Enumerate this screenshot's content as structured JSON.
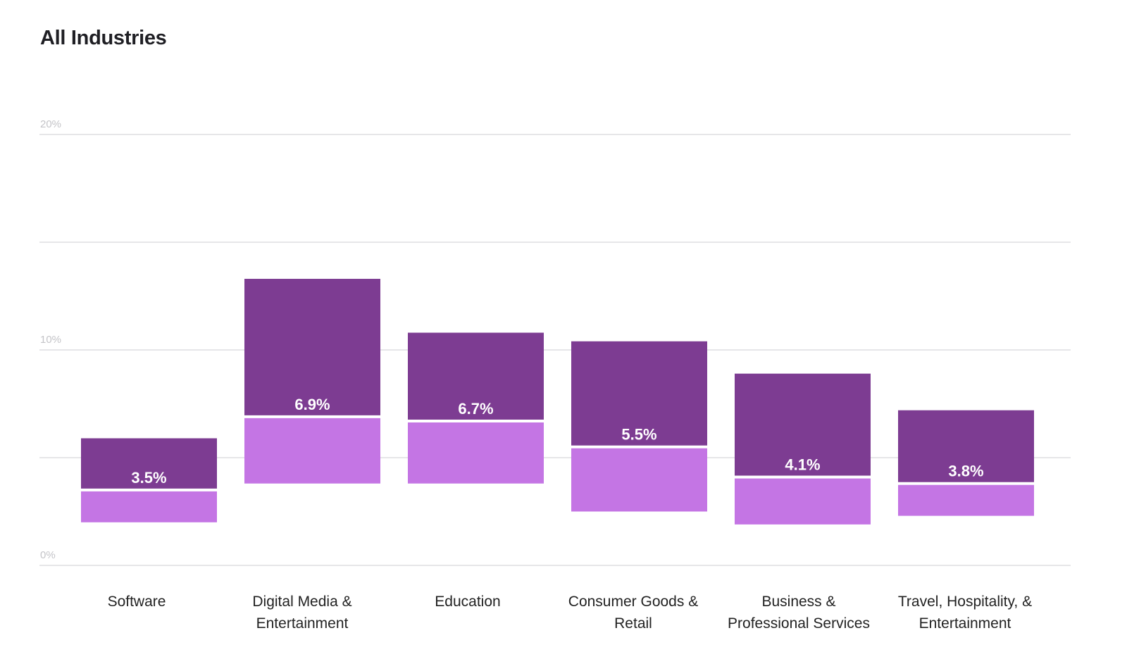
{
  "chart_data": {
    "type": "bar",
    "subtype": "floating-range",
    "title": "All Industries",
    "ylim": [
      0,
      20
    ],
    "y_ticks": [
      "0%",
      "10%",
      "20%"
    ],
    "gridlines": [
      0,
      5,
      10,
      15,
      20
    ],
    "grid": true,
    "colors": {
      "upper": "#7d3c92",
      "lower": "#c475e4",
      "grid": "#e6e6e8"
    },
    "categories": [
      [
        "Software"
      ],
      [
        "Digital Media &",
        "Entertainment"
      ],
      [
        "Education"
      ],
      [
        "Consumer Goods &",
        "Retail"
      ],
      [
        "Business &",
        "Professional Services"
      ],
      [
        "Travel, Hospitality, &",
        "Entertainment"
      ]
    ],
    "series": [
      {
        "low": 2.0,
        "median": 3.5,
        "high": 5.9,
        "label": "3.5%"
      },
      {
        "low": 3.8,
        "median": 6.9,
        "high": 13.3,
        "label": "6.9%"
      },
      {
        "low": 3.8,
        "median": 6.7,
        "high": 10.8,
        "label": "6.7%"
      },
      {
        "low": 2.5,
        "median": 5.5,
        "high": 10.4,
        "label": "5.5%"
      },
      {
        "low": 1.9,
        "median": 4.1,
        "high": 8.9,
        "label": "4.1%"
      },
      {
        "low": 2.3,
        "median": 3.8,
        "high": 7.2,
        "label": "3.8%"
      }
    ]
  }
}
